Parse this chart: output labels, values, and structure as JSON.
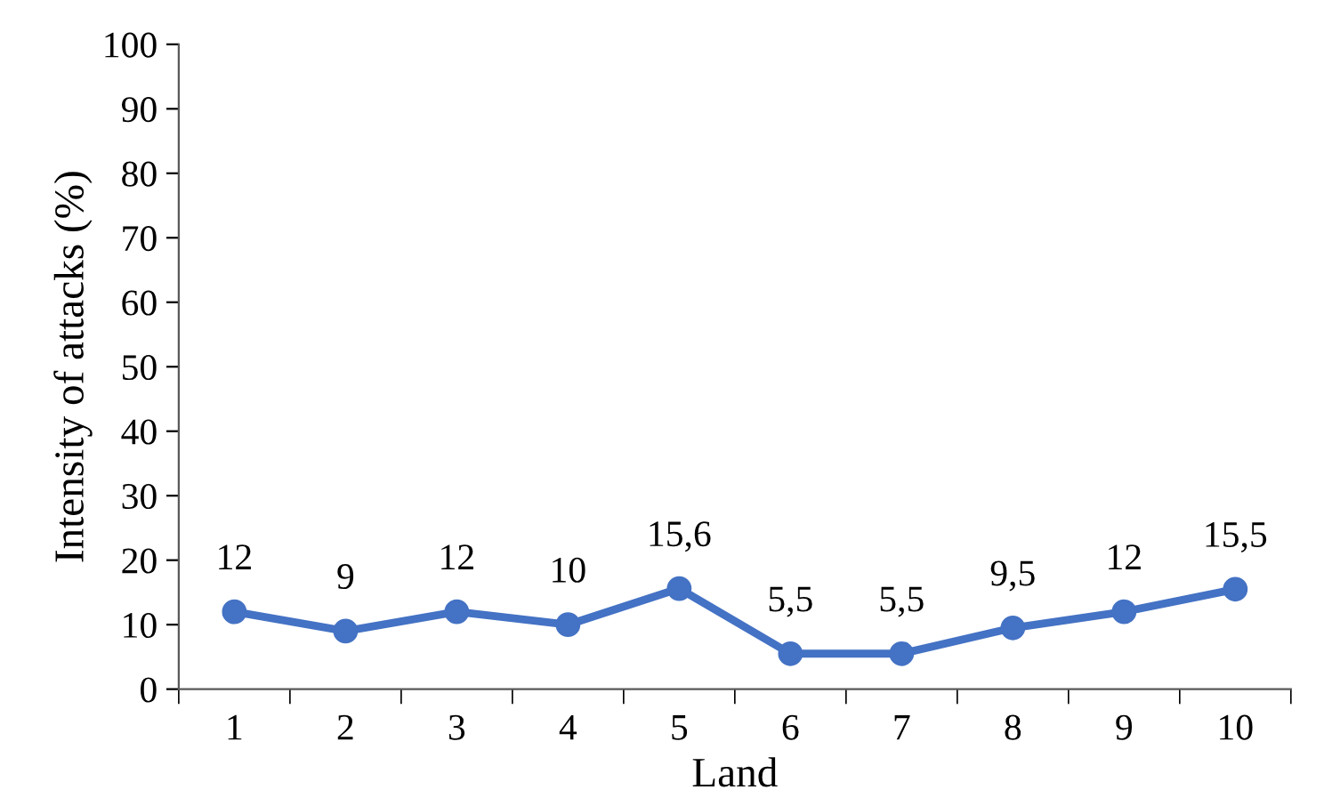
{
  "chart_data": {
    "type": "line",
    "xlabel": "Land",
    "ylabel": "Intensity of attacks (%)",
    "categories": [
      "1",
      "2",
      "3",
      "4",
      "5",
      "6",
      "7",
      "8",
      "9",
      "10"
    ],
    "series": [
      {
        "color": "#4472c4",
        "values": [
          12,
          9,
          12,
          10,
          15.6,
          5.5,
          5.5,
          9.5,
          12,
          15.5
        ],
        "value_labels": [
          "12",
          "9",
          "12",
          "10",
          "15,6",
          "5,5",
          "5,5",
          "9,5",
          "12",
          "15,5"
        ]
      }
    ],
    "ylim": [
      0,
      100
    ],
    "yticks": [
      0,
      10,
      20,
      30,
      40,
      50,
      60,
      70,
      80,
      90,
      100
    ],
    "grid": false,
    "marker": "circle",
    "line_style": "solid"
  }
}
